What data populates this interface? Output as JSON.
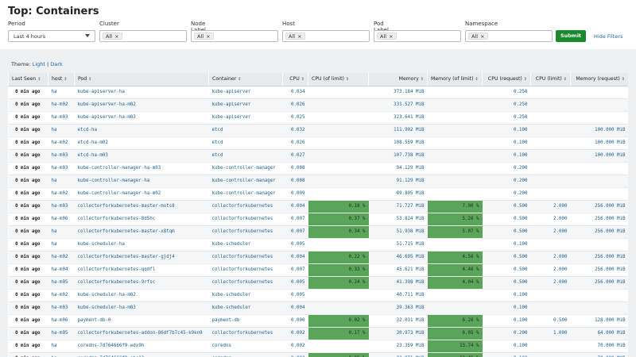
{
  "title": "Top: Containers",
  "filters": {
    "period": {
      "label": "Period",
      "value": "Last 4 hours"
    },
    "cluster": {
      "label": "Cluster",
      "tag": "All"
    },
    "node_label": {
      "label": "Node Label",
      "tag": "All"
    },
    "host": {
      "label": "Host",
      "tag": "All"
    },
    "pod_label": {
      "label": "Pod Label",
      "tag": "All"
    },
    "namespace": {
      "label": "Namespace",
      "tag": "All"
    },
    "remove_glyph": "×",
    "submit_label": "Submit",
    "hide_label": "Hide Filters"
  },
  "theme": {
    "label": "Theme:",
    "light": "Light",
    "sep": "|",
    "dark": "Dark"
  },
  "colors": {
    "submit": "#1a8a2e",
    "highlight": "#5aa55a",
    "link": "#1a67a3"
  },
  "columns": [
    "Last Seen",
    "host",
    "Pod",
    "Container",
    "CPU",
    "CPU (of limit)",
    "Memory",
    "Memory (of limit)",
    "CPU (request)",
    "CPU (limit)",
    "Memory (request)",
    "Memory (limit)"
  ],
  "sort_glyph": "⇕",
  "rows": [
    [
      "0 min ago",
      "ha",
      "kube-apiserver-ha",
      "kube-apiserver",
      "0.034",
      "",
      "373.184 MiB",
      "",
      "0.250",
      "",
      "",
      ""
    ],
    [
      "0 min ago",
      "ha-m02",
      "kube-apiserver-ha-m02",
      "kube-apiserver",
      "0.026",
      "",
      "331.527 MiB",
      "",
      "0.250",
      "",
      "",
      ""
    ],
    [
      "0 min ago",
      "ha-m03",
      "kube-apiserver-ha-m03",
      "kube-apiserver",
      "0.025",
      "",
      "323.641 MiB",
      "",
      "0.250",
      "",
      "",
      ""
    ],
    [
      "0 min ago",
      "ha",
      "etcd-ha",
      "etcd",
      "0.032",
      "",
      "111.902 MiB",
      "",
      "0.100",
      "",
      "100.000 MiB",
      ""
    ],
    [
      "0 min ago",
      "ha-m02",
      "etcd-ha-m02",
      "etcd",
      "0.026",
      "",
      "108.559 MiB",
      "",
      "0.100",
      "",
      "100.000 MiB",
      ""
    ],
    [
      "0 min ago",
      "ha-m03",
      "etcd-ha-m03",
      "etcd",
      "0.027",
      "",
      "107.738 MiB",
      "",
      "0.100",
      "",
      "100.000 MiB",
      ""
    ],
    [
      "0 min ago",
      "ha-m03",
      "kube-controller-manager-ha-m03",
      "kube-controller-manager",
      "0.008",
      "",
      "94.129 MiB",
      "",
      "0.200",
      "",
      "",
      ""
    ],
    [
      "0 min ago",
      "ha",
      "kube-controller-manager-ha",
      "kube-controller-manager",
      "0.008",
      "",
      "91.129 MiB",
      "",
      "0.200",
      "",
      "",
      ""
    ],
    [
      "0 min ago",
      "ha-m02",
      "kube-controller-manager-ha-m02",
      "kube-controller-manager",
      "0.009",
      "",
      "89.805 MiB",
      "",
      "0.200",
      "",
      "",
      ""
    ],
    [
      "0 min ago",
      "ha-m03",
      "collectorforkubernetes-master-msts8",
      "collectorforkubernetes",
      "0.004",
      "0.18 %",
      "71.727 MiB",
      "7.00 %",
      "0.500",
      "2.000",
      "256.000 MiB",
      "1,024.000"
    ],
    [
      "0 min ago",
      "ha-m06",
      "collectorforkubernetes-8d5hc",
      "collectorforkubernetes",
      "0.007",
      "0.37 %",
      "53.824 MiB",
      "5.26 %",
      "0.500",
      "2.000",
      "256.000 MiB",
      "1,024.000"
    ],
    [
      "0 min ago",
      "ha",
      "collectorforkubernetes-master-x8tqm",
      "collectorforkubernetes",
      "0.007",
      "0.34 %",
      "51.938 MiB",
      "5.07 %",
      "0.500",
      "2.000",
      "256.000 MiB",
      "1,024.000"
    ],
    [
      "0 min ago",
      "ha",
      "kube-scheduler-ha",
      "kube-scheduler",
      "0.005",
      "",
      "51.715 MiB",
      "",
      "0.100",
      "",
      "",
      ""
    ],
    [
      "0 min ago",
      "ha-m02",
      "collectorforkubernetes-master-gjdj4",
      "collectorforkubernetes",
      "0.004",
      "0.22 %",
      "46.695 MiB",
      "4.56 %",
      "0.500",
      "2.000",
      "256.000 MiB",
      "1,024.000"
    ],
    [
      "0 min ago",
      "ha-m04",
      "collectorforkubernetes-qqdfl",
      "collectorforkubernetes",
      "0.007",
      "0.33 %",
      "45.621 MiB",
      "4.46 %",
      "0.500",
      "2.000",
      "256.000 MiB",
      "1,024.000"
    ],
    [
      "0 min ago",
      "ha-m05",
      "collectorforkubernetes-9rfsc",
      "collectorforkubernetes",
      "0.005",
      "0.24 %",
      "41.398 MiB",
      "4.04 %",
      "0.500",
      "2.000",
      "256.000 MiB",
      "1,024.000"
    ],
    [
      "0 min ago",
      "ha-m02",
      "kube-scheduler-ha-m02",
      "kube-scheduler",
      "0.005",
      "",
      "40.711 MiB",
      "",
      "0.100",
      "",
      "",
      ""
    ],
    [
      "0 min ago",
      "ha-m03",
      "kube-scheduler-ha-m03",
      "kube-scheduler",
      "0.004",
      "",
      "39.363 MiB",
      "",
      "0.100",
      "",
      "",
      ""
    ],
    [
      "0 min ago",
      "ha-m06",
      "payment-db-0",
      "payment-db",
      "0.000",
      "0.02 %",
      "32.031 MiB",
      "6.26 %",
      "0.100",
      "0.500",
      "128.000 MiB",
      "512.000"
    ],
    [
      "0 min ago",
      "ha-m05",
      "collectorforkubernetes-addon-86df7b7c45-k9kn9",
      "collectorforkubernetes",
      "0.002",
      "0.17 %",
      "30.973 MiB",
      "6.05 %",
      "0.200",
      "1.000",
      "64.000 MiB",
      "512.000"
    ],
    [
      "0 min ago",
      "ha",
      "coredns-7d764666f9-wdx9h",
      "coredns",
      "0.002",
      "",
      "23.359 MiB",
      "13.74 %",
      "0.100",
      "",
      "70.000 MiB",
      "170.000"
    ],
    [
      "0 min ago",
      "ha",
      "coredns-7d764666f9-abc12",
      "coredns",
      "0.002",
      "0.05 %",
      "22.871 MiB",
      "13.45 %",
      "0.100",
      "",
      "70.000 MiB",
      "170.000"
    ]
  ]
}
